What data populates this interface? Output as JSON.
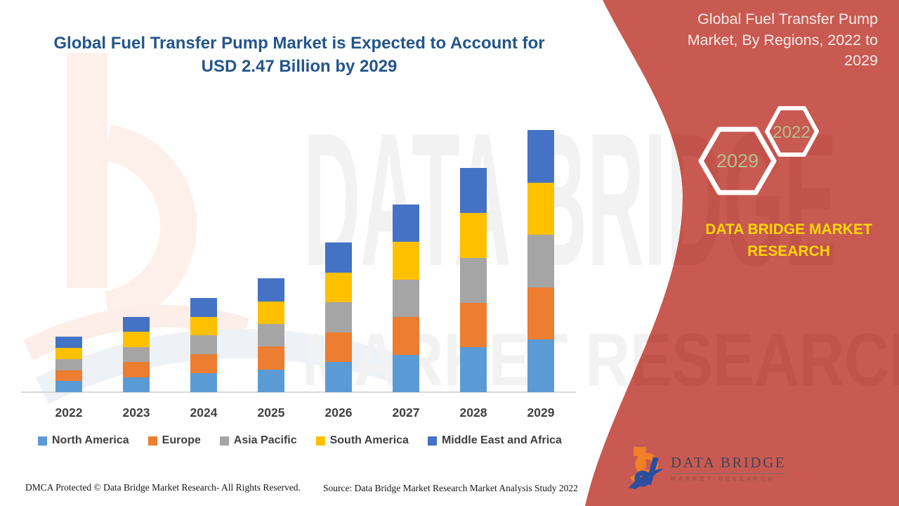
{
  "title": {
    "line1": "Global Fuel Transfer Pump Market is Expected to Account for",
    "line2": "USD 2.47 Billion by 2029"
  },
  "sidebar": {
    "heading": "Global Fuel Transfer Pump Market, By Regions, 2022 to 2029",
    "hexagons": [
      {
        "label": "2029"
      },
      {
        "label": "2022"
      }
    ],
    "brand_line1": "DATA BRIDGE MARKET",
    "brand_line2": "RESEARCH",
    "logo_name": "DATA BRIDGE",
    "logo_sub": "MARKET RESEARCH"
  },
  "watermark": {
    "row1": "DATA BRIDGE",
    "row2": "MARKET RESEARCH"
  },
  "chart_data": {
    "type": "bar",
    "stacked": true,
    "title": "Global Fuel Transfer Pump Market is Expected to Account for USD 2.47 Billion by 2029",
    "unit": "USD Billion (estimated from chart scale)",
    "categories": [
      "2022",
      "2023",
      "2024",
      "2025",
      "2026",
      "2027",
      "2028",
      "2029"
    ],
    "series": [
      {
        "name": "North America",
        "color": "#5b9bd5",
        "values": [
          0.104,
          0.142,
          0.178,
          0.214,
          0.282,
          0.354,
          0.422,
          0.494
        ]
      },
      {
        "name": "Europe",
        "color": "#ed7d31",
        "values": [
          0.104,
          0.142,
          0.178,
          0.214,
          0.282,
          0.354,
          0.422,
          0.494
        ]
      },
      {
        "name": "Asia Pacific",
        "color": "#a5a5a5",
        "values": [
          0.104,
          0.142,
          0.178,
          0.214,
          0.282,
          0.354,
          0.422,
          0.494
        ]
      },
      {
        "name": "South America",
        "color": "#ffc000",
        "values": [
          0.104,
          0.142,
          0.178,
          0.214,
          0.282,
          0.354,
          0.422,
          0.494
        ]
      },
      {
        "name": "Middle East and Africa",
        "color": "#4472c4",
        "values": [
          0.104,
          0.142,
          0.178,
          0.214,
          0.282,
          0.354,
          0.422,
          0.494
        ]
      }
    ],
    "totals": [
      0.52,
      0.71,
      0.89,
      1.07,
      1.41,
      1.77,
      2.11,
      2.47
    ],
    "ylim": [
      0,
      2.6
    ],
    "grid": false,
    "axis_labels_visible": false,
    "legend_position": "bottom",
    "xlabel": "",
    "ylabel": ""
  },
  "footer": {
    "left": "DMCA Protected © Data Bridge Market Research- All Rights Reserved.",
    "right": "Source: Data Bridge Market Research Market Analysis Study 2022"
  },
  "colors": {
    "sidebar_red": "#c85a52",
    "sidebar_watermark_red": "#c2534b",
    "brand_yellow": "#ffd708",
    "hex_year_green": "#b6bd8e",
    "title_blue": "#24558a",
    "watermark_gray": "#f2f2f3"
  }
}
